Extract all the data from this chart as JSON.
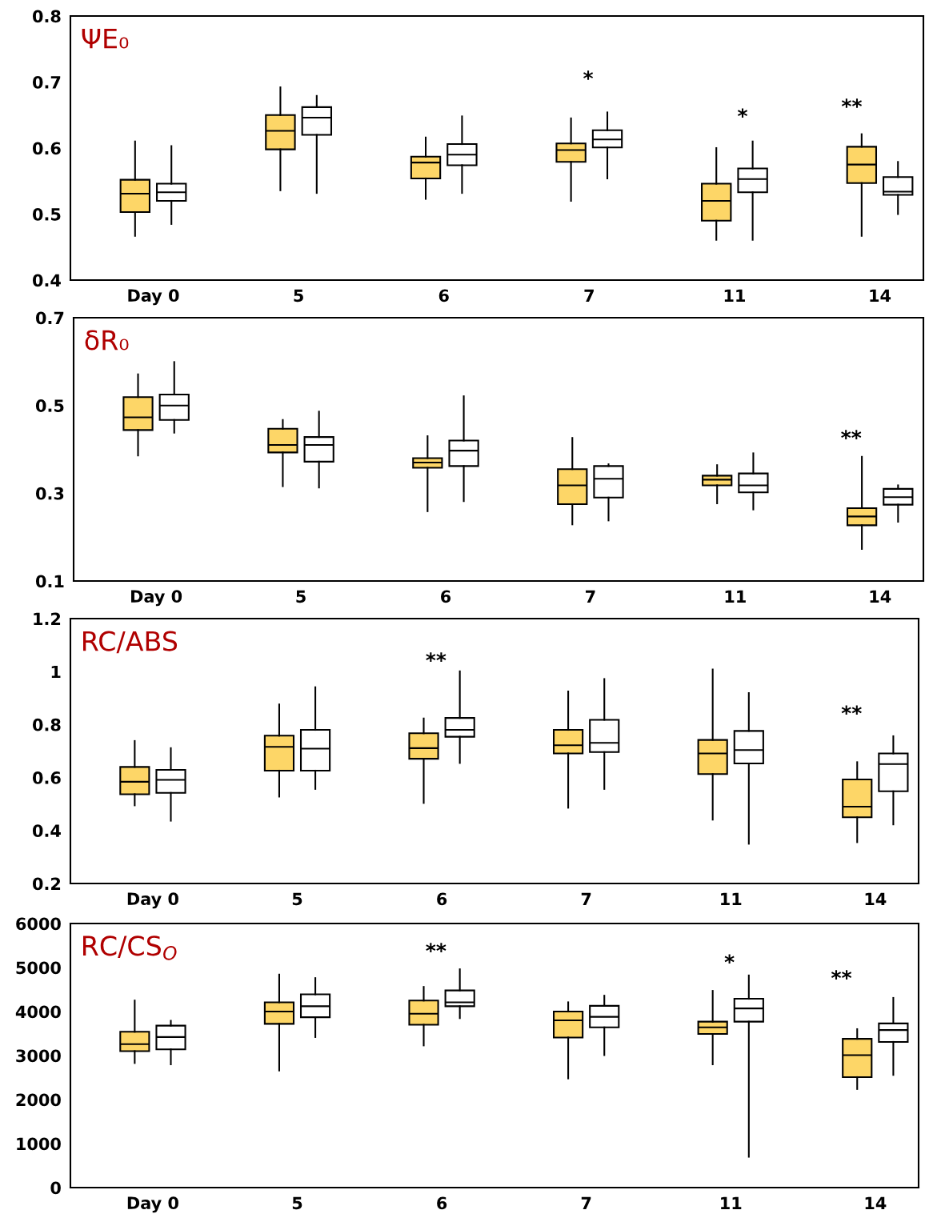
{
  "chart_data": [
    {
      "type": "box",
      "title": "ΨE₀",
      "categories": [
        "Day 0",
        "5",
        "6",
        "7",
        "11",
        "14"
      ],
      "ylim": [
        0.4,
        0.8
      ],
      "yticks": [
        0.4,
        0.5,
        0.6,
        0.7,
        0.8
      ],
      "grid": false,
      "series": [
        {
          "color": "#fdd667",
          "boxes": [
            {
              "low": 0.467,
              "q1": 0.503,
              "median": 0.531,
              "q3": 0.552,
              "high": 0.61
            },
            {
              "low": 0.536,
              "q1": 0.598,
              "median": 0.626,
              "q3": 0.65,
              "high": 0.692
            },
            {
              "low": 0.523,
              "q1": 0.554,
              "median": 0.578,
              "q3": 0.587,
              "high": 0.616
            },
            {
              "low": 0.52,
              "q1": 0.579,
              "median": 0.597,
              "q3": 0.607,
              "high": 0.645
            },
            {
              "low": 0.461,
              "q1": 0.49,
              "median": 0.52,
              "q3": 0.546,
              "high": 0.6
            },
            {
              "low": 0.467,
              "q1": 0.547,
              "median": 0.575,
              "q3": 0.602,
              "high": 0.621
            }
          ]
        },
        {
          "color": "#ffffff",
          "boxes": [
            {
              "low": 0.485,
              "q1": 0.52,
              "median": 0.533,
              "q3": 0.546,
              "high": 0.603
            },
            {
              "low": 0.532,
              "q1": 0.62,
              "median": 0.646,
              "q3": 0.662,
              "high": 0.679
            },
            {
              "low": 0.532,
              "q1": 0.574,
              "median": 0.59,
              "q3": 0.606,
              "high": 0.648
            },
            {
              "low": 0.554,
              "q1": 0.601,
              "median": 0.613,
              "q3": 0.627,
              "high": 0.654
            },
            {
              "low": 0.461,
              "q1": 0.533,
              "median": 0.553,
              "q3": 0.569,
              "high": 0.61
            },
            {
              "low": 0.5,
              "q1": 0.529,
              "median": 0.534,
              "q3": 0.556,
              "high": 0.579
            }
          ]
        }
      ],
      "annotations": [
        "*",
        "*",
        "**"
      ]
    },
    {
      "type": "box",
      "title": "δR₀",
      "categories": [
        "Day 0",
        "5",
        "6",
        "7",
        "11",
        "14"
      ],
      "ylim": [
        0.1,
        0.7
      ],
      "yticks": [
        0.1,
        0.3,
        0.5,
        0.7
      ],
      "grid": false,
      "series": [
        {
          "color": "#fdd667",
          "boxes": [
            {
              "low": 0.386,
              "q1": 0.444,
              "median": 0.473,
              "q3": 0.519,
              "high": 0.571
            },
            {
              "low": 0.316,
              "q1": 0.393,
              "median": 0.41,
              "q3": 0.447,
              "high": 0.467
            },
            {
              "low": 0.259,
              "q1": 0.358,
              "median": 0.37,
              "q3": 0.38,
              "high": 0.43
            },
            {
              "low": 0.229,
              "q1": 0.275,
              "median": 0.318,
              "q3": 0.355,
              "high": 0.426
            },
            {
              "low": 0.277,
              "q1": 0.318,
              "median": 0.331,
              "q3": 0.34,
              "high": 0.364
            },
            {
              "low": 0.173,
              "q1": 0.227,
              "median": 0.247,
              "q3": 0.266,
              "high": 0.383
            }
          ]
        },
        {
          "color": "#ffffff",
          "boxes": [
            {
              "low": 0.438,
              "q1": 0.467,
              "median": 0.5,
              "q3": 0.525,
              "high": 0.599
            },
            {
              "low": 0.313,
              "q1": 0.372,
              "median": 0.41,
              "q3": 0.428,
              "high": 0.486
            },
            {
              "low": 0.282,
              "q1": 0.362,
              "median": 0.397,
              "q3": 0.42,
              "high": 0.521
            },
            {
              "low": 0.238,
              "q1": 0.29,
              "median": 0.333,
              "q3": 0.362,
              "high": 0.366
            },
            {
              "low": 0.263,
              "q1": 0.302,
              "median": 0.318,
              "q3": 0.345,
              "high": 0.391
            },
            {
              "low": 0.235,
              "q1": 0.274,
              "median": 0.291,
              "q3": 0.31,
              "high": 0.318
            }
          ]
        }
      ],
      "annotations": [
        "**"
      ]
    },
    {
      "type": "box",
      "title": "RC/ABS",
      "categories": [
        "Day 0",
        "5",
        "6",
        "7",
        "11",
        "14"
      ],
      "ylim": [
        0.2,
        1.2
      ],
      "yticks": [
        0.2,
        0.4,
        0.6,
        0.8,
        1,
        1.2
      ],
      "grid": false,
      "series": [
        {
          "color": "#fdd667",
          "boxes": [
            {
              "low": 0.495,
              "q1": 0.537,
              "median": 0.584,
              "q3": 0.64,
              "high": 0.738
            },
            {
              "low": 0.528,
              "q1": 0.626,
              "median": 0.716,
              "q3": 0.758,
              "high": 0.876
            },
            {
              "low": 0.504,
              "q1": 0.671,
              "median": 0.711,
              "q3": 0.767,
              "high": 0.823
            },
            {
              "low": 0.486,
              "q1": 0.691,
              "median": 0.722,
              "q3": 0.78,
              "high": 0.925
            },
            {
              "low": 0.441,
              "q1": 0.613,
              "median": 0.691,
              "q3": 0.742,
              "high": 1.008
            },
            {
              "low": 0.356,
              "q1": 0.45,
              "median": 0.49,
              "q3": 0.593,
              "high": 0.658
            }
          ]
        },
        {
          "color": "#ffffff",
          "boxes": [
            {
              "low": 0.437,
              "q1": 0.542,
              "median": 0.591,
              "q3": 0.629,
              "high": 0.711
            },
            {
              "low": 0.557,
              "q1": 0.626,
              "median": 0.709,
              "q3": 0.78,
              "high": 0.941
            },
            {
              "low": 0.655,
              "q1": 0.754,
              "median": 0.78,
              "q3": 0.825,
              "high": 1.001
            },
            {
              "low": 0.557,
              "q1": 0.696,
              "median": 0.731,
              "q3": 0.818,
              "high": 0.972
            },
            {
              "low": 0.35,
              "q1": 0.653,
              "median": 0.704,
              "q3": 0.776,
              "high": 0.919
            },
            {
              "low": 0.423,
              "q1": 0.548,
              "median": 0.651,
              "q3": 0.691,
              "high": 0.756
            }
          ]
        }
      ],
      "annotations": [
        "**",
        "**"
      ]
    },
    {
      "type": "box",
      "title": "RC/CS$_{O}$",
      "categories": [
        "Day 0",
        "5",
        "6",
        "7",
        "11",
        "14"
      ],
      "ylim": [
        0,
        6000
      ],
      "yticks": [
        0,
        1000,
        2000,
        3000,
        4000,
        5000,
        6000
      ],
      "grid": false,
      "series": [
        {
          "color": "#fdd667",
          "boxes": [
            {
              "low": 2830,
              "q1": 3100,
              "median": 3260,
              "q3": 3540,
              "high": 4250
            },
            {
              "low": 2660,
              "q1": 3720,
              "median": 4000,
              "q3": 4210,
              "high": 4840
            },
            {
              "low": 3230,
              "q1": 3700,
              "median": 3950,
              "q3": 4250,
              "high": 4560
            },
            {
              "low": 2480,
              "q1": 3410,
              "median": 3800,
              "q3": 4000,
              "high": 4210
            },
            {
              "low": 2800,
              "q1": 3490,
              "median": 3640,
              "q3": 3770,
              "high": 4470
            },
            {
              "low": 2240,
              "q1": 2510,
              "median": 3010,
              "q3": 3380,
              "high": 3600
            }
          ]
        },
        {
          "color": "#ffffff",
          "boxes": [
            {
              "low": 2800,
              "q1": 3140,
              "median": 3420,
              "q3": 3680,
              "high": 3790
            },
            {
              "low": 3420,
              "q1": 3870,
              "median": 4120,
              "q3": 4390,
              "high": 4760
            },
            {
              "low": 3850,
              "q1": 4120,
              "median": 4210,
              "q3": 4480,
              "high": 4960
            },
            {
              "low": 3010,
              "q1": 3640,
              "median": 3880,
              "q3": 4130,
              "high": 4360
            },
            {
              "low": 700,
              "q1": 3770,
              "median": 4070,
              "q3": 4290,
              "high": 4820
            },
            {
              "low": 2560,
              "q1": 3310,
              "median": 3580,
              "q3": 3730,
              "high": 4310
            }
          ]
        }
      ],
      "annotations": [
        "**",
        "*",
        "**"
      ]
    }
  ]
}
